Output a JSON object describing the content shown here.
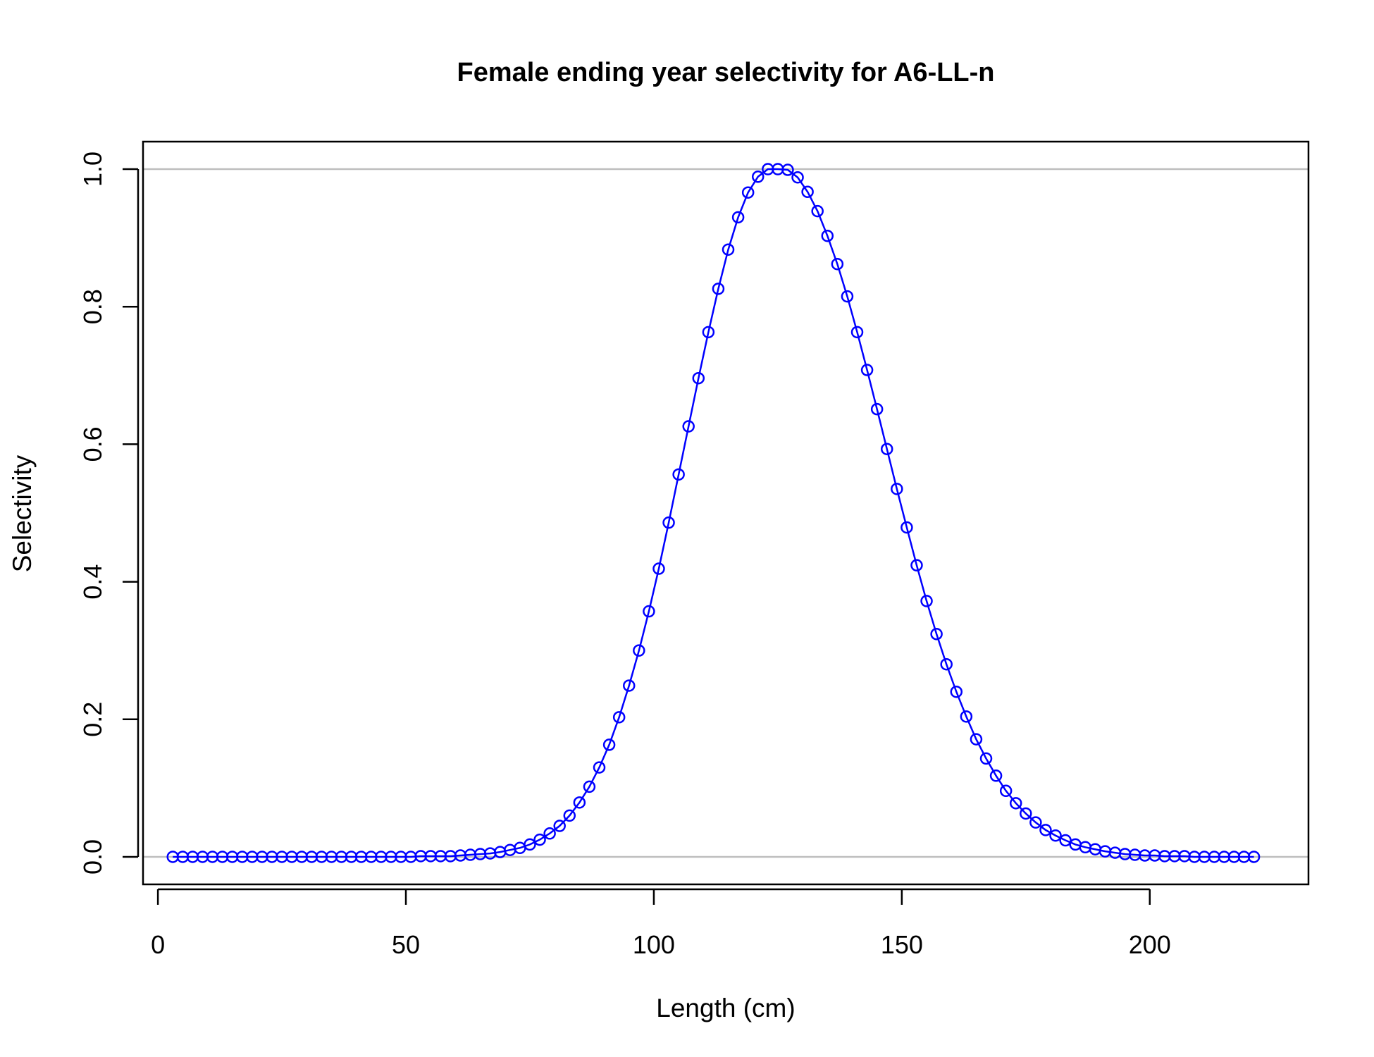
{
  "chart_data": {
    "type": "line",
    "title": "Female ending year selectivity for A6-LL-n",
    "xlabel": "Length (cm)",
    "ylabel": "Selectivity",
    "xlim": [
      -3,
      232
    ],
    "ylim": [
      -0.04,
      1.04
    ],
    "xticks": [
      0,
      50,
      100,
      150,
      200
    ],
    "xtick_labels": [
      "0",
      "50",
      "100",
      "150",
      "200"
    ],
    "yticks": [
      0,
      0.2,
      0.4,
      0.6,
      0.8,
      1
    ],
    "ytick_labels": [
      "0.0",
      "0.2",
      "0.4",
      "0.6",
      "0.8",
      "1.0"
    ],
    "reference_lines": [
      0,
      1
    ],
    "grid": false,
    "legend": "none",
    "colors": {
      "series": "#0000ff",
      "reference": "#bebebe",
      "axis": "#000000"
    },
    "series": [
      {
        "marker": "open-circle",
        "x": [
          3,
          5,
          7,
          9,
          11,
          13,
          15,
          17,
          19,
          21,
          23,
          25,
          27,
          29,
          31,
          33,
          35,
          37,
          39,
          41,
          43,
          45,
          47,
          49,
          51,
          53,
          55,
          57,
          59,
          61,
          63,
          65,
          67,
          69,
          71,
          73,
          75,
          77,
          79,
          81,
          83,
          85,
          87,
          89,
          91,
          93,
          95,
          97,
          99,
          101,
          103,
          105,
          107,
          109,
          111,
          113,
          115,
          117,
          119,
          121,
          123,
          125,
          127,
          129,
          131,
          133,
          135,
          137,
          139,
          141,
          143,
          145,
          147,
          149,
          151,
          153,
          155,
          157,
          159,
          161,
          163,
          165,
          167,
          169,
          171,
          173,
          175,
          177,
          179,
          181,
          183,
          185,
          187,
          189,
          191,
          193,
          195,
          197,
          199,
          201,
          203,
          205,
          207,
          209,
          211,
          213,
          215,
          217,
          219,
          221
        ],
        "y": [
          0,
          0,
          0,
          0,
          0,
          0,
          0,
          0,
          0,
          0,
          0,
          0,
          0,
          0,
          0,
          0,
          0,
          0,
          0,
          0,
          0,
          0,
          0,
          0,
          0,
          0.001,
          0.001,
          0.001,
          0.001,
          0.002,
          0.003,
          0.004,
          0.005,
          0.007,
          0.01,
          0.013,
          0.018,
          0.025,
          0.034,
          0.045,
          0.06,
          0.079,
          0.102,
          0.13,
          0.163,
          0.203,
          0.249,
          0.3,
          0.357,
          0.419,
          0.486,
          0.556,
          0.626,
          0.696,
          0.763,
          0.826,
          0.883,
          0.93,
          0.966,
          0.989,
          1.0,
          1.0,
          0.999,
          0.988,
          0.967,
          0.939,
          0.903,
          0.862,
          0.815,
          0.763,
          0.708,
          0.651,
          0.593,
          0.535,
          0.479,
          0.424,
          0.372,
          0.324,
          0.28,
          0.24,
          0.204,
          0.171,
          0.143,
          0.118,
          0.096,
          0.078,
          0.063,
          0.05,
          0.039,
          0.031,
          0.024,
          0.018,
          0.014,
          0.011,
          0.008,
          0.006,
          0.004,
          0.003,
          0.002,
          0.002,
          0.001,
          0.001,
          0.001,
          0,
          0,
          0,
          0,
          0,
          0,
          0
        ]
      }
    ]
  }
}
